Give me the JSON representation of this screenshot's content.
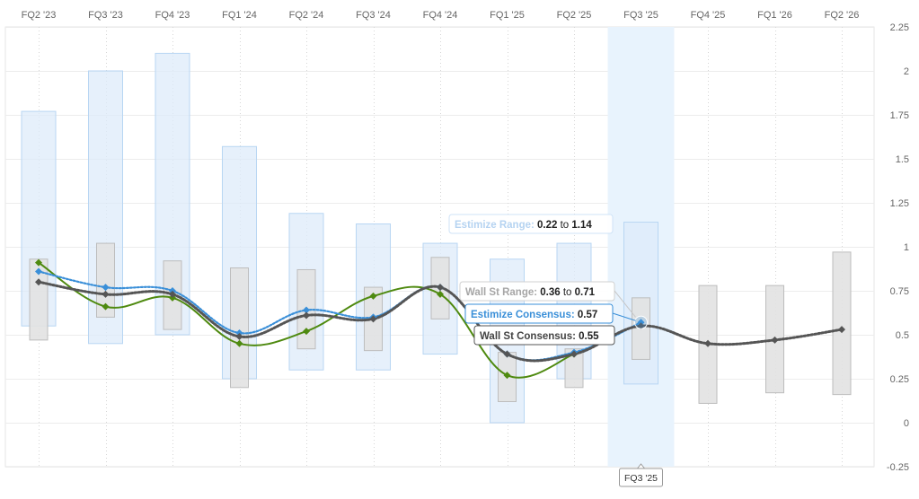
{
  "chart_data": {
    "type": "line",
    "categories": [
      "FQ2 '23",
      "FQ3 '23",
      "FQ4 '23",
      "FQ1 '24",
      "FQ2 '24",
      "FQ3 '24",
      "FQ4 '24",
      "FQ1 '25",
      "FQ2 '25",
      "FQ3 '25",
      "FQ4 '25",
      "FQ1 '26",
      "FQ2 '26"
    ],
    "ylim": [
      -0.25,
      2.25
    ],
    "yticks": [
      "-0.25",
      "0",
      "0.25",
      "0.5",
      "0.75",
      "1",
      "1.25",
      "1.5",
      "1.75",
      "2",
      "2.25"
    ],
    "grid": true,
    "highlighted_category": "FQ3 '25",
    "series": [
      {
        "key": "actual",
        "values": [
          0.91,
          0.66,
          0.71,
          0.45,
          0.52,
          0.72,
          0.73,
          0.27,
          0.39,
          null,
          null,
          null,
          null
        ],
        "color": "#4f8a10"
      },
      {
        "key": "estimize_consensus",
        "values": [
          0.86,
          0.77,
          0.75,
          0.51,
          0.64,
          0.6,
          0.77,
          0.39,
          0.4,
          0.57,
          null,
          null,
          null
        ],
        "color": "#3a8fd8"
      },
      {
        "key": "wall_st_consensus",
        "values": [
          0.8,
          0.73,
          0.73,
          0.49,
          0.61,
          0.59,
          0.77,
          0.39,
          0.39,
          0.55,
          0.45,
          0.47,
          0.53
        ],
        "color": "#555555"
      }
    ],
    "estimize_range": [
      [
        0.55,
        1.77
      ],
      [
        0.45,
        2.0
      ],
      [
        0.5,
        2.1
      ],
      [
        0.25,
        1.57
      ],
      [
        0.3,
        1.19
      ],
      [
        0.3,
        1.13
      ],
      [
        0.39,
        1.02
      ],
      [
        0.0,
        0.93
      ],
      [
        0.25,
        1.02
      ],
      [
        0.22,
        1.14
      ],
      null,
      null,
      null
    ],
    "wall_st_range": [
      [
        0.47,
        0.93
      ],
      [
        0.6,
        1.02
      ],
      [
        0.53,
        0.92
      ],
      [
        0.2,
        0.88
      ],
      [
        0.42,
        0.87
      ],
      [
        0.41,
        0.77
      ],
      [
        0.59,
        0.94
      ],
      [
        0.12,
        0.4
      ],
      [
        0.2,
        0.42
      ],
      [
        0.36,
        0.71
      ],
      [
        0.11,
        0.78
      ],
      [
        0.17,
        0.78
      ],
      [
        0.16,
        0.97
      ]
    ],
    "tooltip": {
      "estimize_range_label": "Estimize Range",
      "estimize_range_low": "0.22",
      "estimize_range_high": "1.14",
      "wall_st_range_label": "Wall St Range",
      "wall_st_range_low": "0.36",
      "wall_st_range_high": "0.71",
      "estimize_consensus_label": "Estimize Consensus",
      "estimize_consensus_value": "0.57",
      "wall_st_consensus_label": "Wall St Consensus",
      "wall_st_consensus_value": "0.55",
      "to_word": "to",
      "axis_label": "FQ3 '25"
    }
  }
}
